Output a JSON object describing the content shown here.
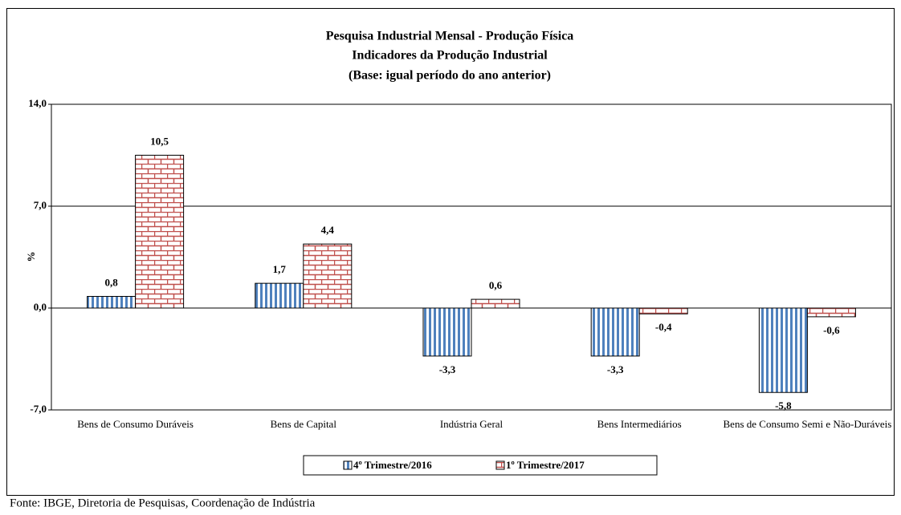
{
  "chart_data": {
    "type": "bar",
    "title": [
      "Pesquisa Industrial Mensal - Produção Física",
      "Indicadores da Produção Industrial",
      "(Base: igual período do ano anterior)"
    ],
    "y_label": "%",
    "categories": [
      "Bens de Consumo Duráveis",
      "Bens de Capital",
      "Indústria Geral",
      "Bens Intermediários",
      "Bens de Consumo Semi e Não-Duráveis"
    ],
    "series": [
      {
        "name": "4º Trimestre/2016",
        "color": "#4f81bd",
        "values": [
          0.8,
          1.7,
          -3.3,
          -3.3,
          -5.8
        ],
        "value_labels": [
          "0,8",
          "1,7",
          "-3,3",
          "-3,3",
          "-5,8"
        ]
      },
      {
        "name": "1º Trimestre/2017",
        "color": "#c0504d",
        "values": [
          10.5,
          4.4,
          0.6,
          -0.4,
          -0.6
        ],
        "value_labels": [
          "10,5",
          "4,4",
          "0,6",
          "-0,4",
          "-0,6"
        ]
      }
    ],
    "ylim": [
      -7,
      14
    ],
    "yticks": [
      {
        "value": -7,
        "label": "-7,0"
      },
      {
        "value": 0,
        "label": "0,0"
      },
      {
        "value": 7,
        "label": "7,0"
      },
      {
        "value": 14,
        "label": "14,0"
      }
    ],
    "grid": true,
    "legend": "bottom",
    "source": "Fonte: IBGE, Diretoria de Pesquisas, Coordenação de Indústria"
  }
}
